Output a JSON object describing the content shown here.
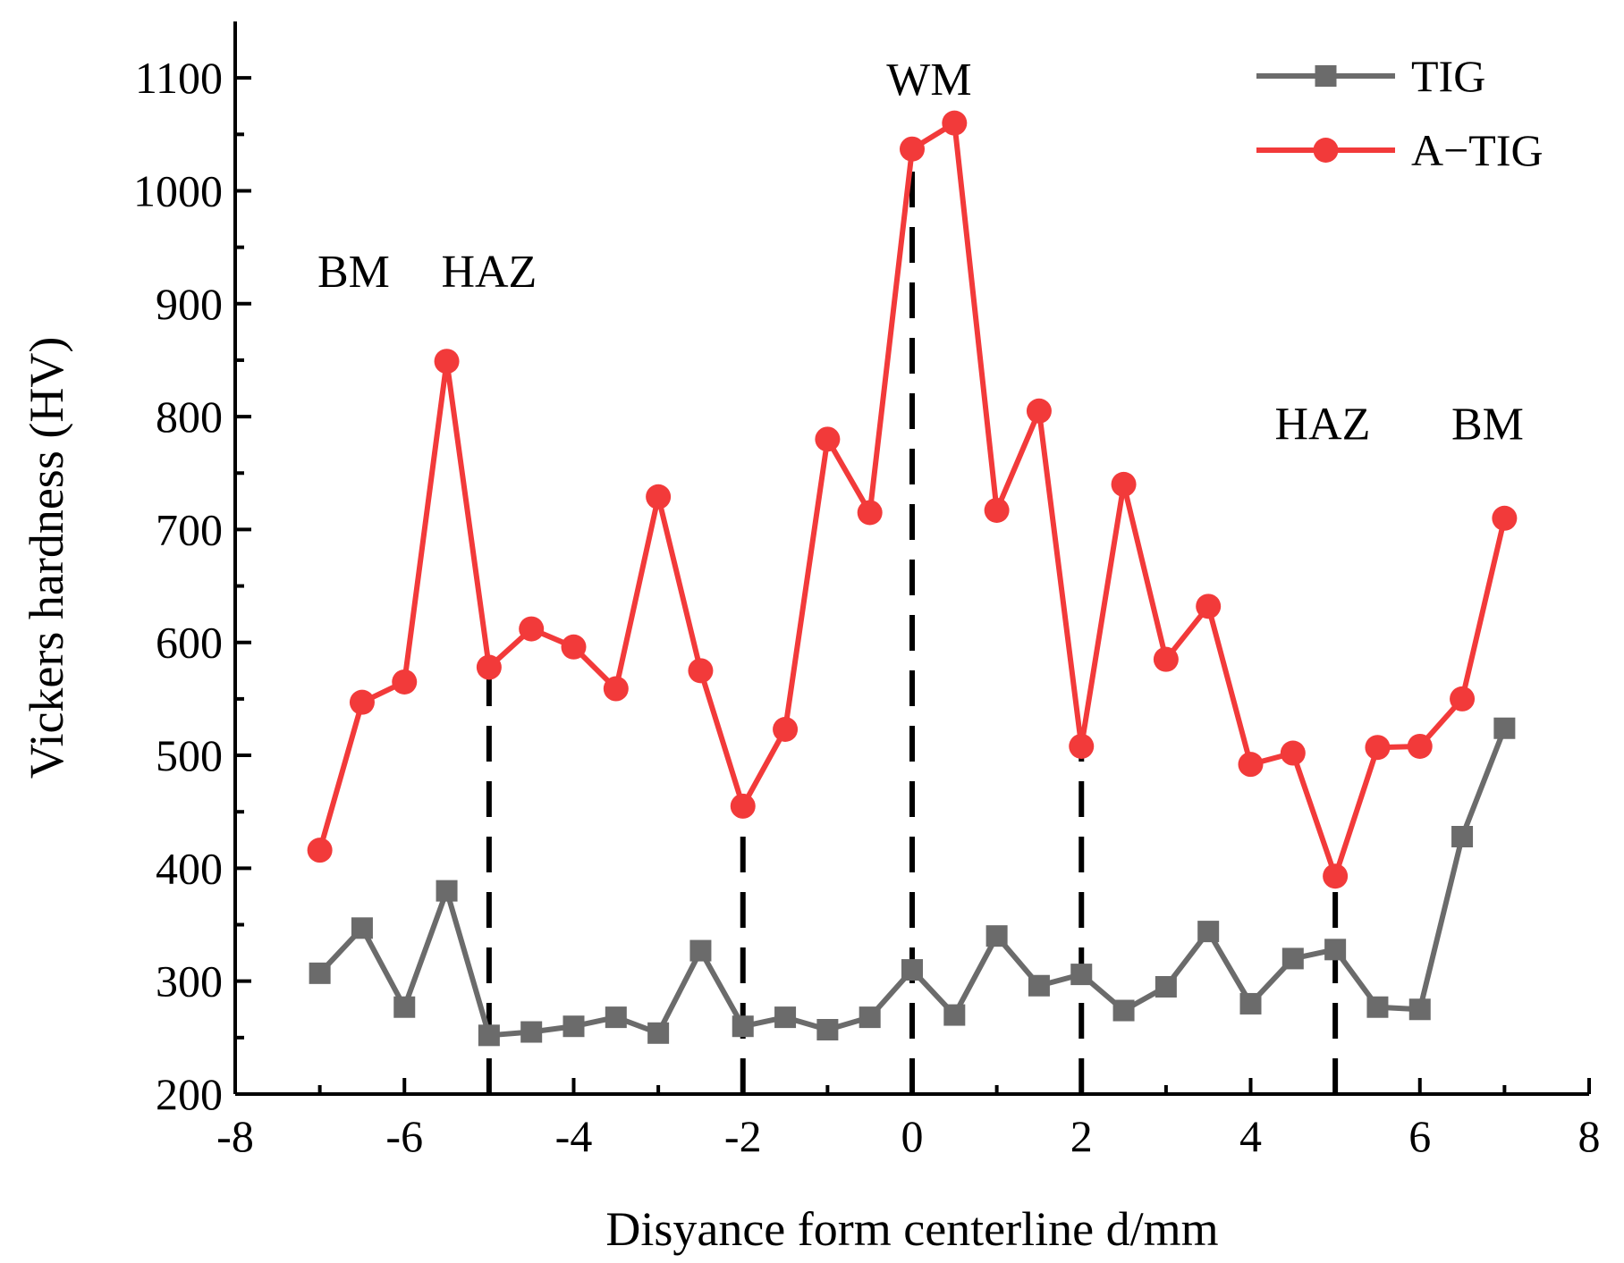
{
  "chart_data": {
    "type": "line",
    "title": "",
    "xlabel": "Disyance form centerline d/mm",
    "ylabel": "Vickers hardness (HV)",
    "xlim": [
      -8,
      8
    ],
    "ylim": [
      200,
      1150
    ],
    "xticks": [
      -8,
      -6,
      -4,
      -2,
      0,
      2,
      4,
      6,
      8
    ],
    "yticks": [
      200,
      300,
      400,
      500,
      600,
      700,
      800,
      900,
      1000,
      1100
    ],
    "x": [
      -7,
      -6.5,
      -6,
      -5.5,
      -5,
      -4.5,
      -4,
      -3.5,
      -3,
      -2.5,
      -2,
      -1.5,
      -1,
      -0.5,
      0,
      0.5,
      1,
      1.5,
      2,
      2.5,
      3,
      3.5,
      4,
      4.5,
      5,
      5.5,
      6,
      6.5,
      7
    ],
    "series": [
      {
        "name": "TIG",
        "color": "#6b6b6b",
        "marker": "square",
        "values": [
          307,
          347,
          277,
          380,
          252,
          255,
          260,
          268,
          254,
          327,
          260,
          268,
          257,
          268,
          310,
          270,
          340,
          296,
          306,
          274,
          295,
          344,
          280,
          320,
          328,
          277,
          275,
          428,
          524
        ]
      },
      {
        "name": "A−TIG",
        "color": "#f23a3a",
        "marker": "circle",
        "values": [
          416,
          547,
          565,
          849,
          578,
          612,
          596,
          559,
          729,
          575,
          455,
          523,
          780,
          715,
          1037,
          1060,
          717,
          805,
          508,
          740,
          585,
          632,
          492,
          502,
          393,
          507,
          508,
          550,
          710
        ]
      }
    ],
    "vertical_dashed_lines": [
      {
        "x": -5,
        "y_top": 578
      },
      {
        "x": -2,
        "y_top": 455
      },
      {
        "x": 0,
        "y_top": 1037
      },
      {
        "x": 2,
        "y_top": 508
      },
      {
        "x": 5,
        "y_top": 393
      }
    ],
    "annotations": [
      {
        "text": "BM",
        "x": -6.6,
        "y": 915
      },
      {
        "text": "HAZ",
        "x": -5.0,
        "y": 915
      },
      {
        "text": "WM",
        "x": 0.2,
        "y": 1085
      },
      {
        "text": "HAZ",
        "x": 4.85,
        "y": 780
      },
      {
        "text": "BM",
        "x": 6.8,
        "y": 780
      }
    ],
    "legend_position": "top-right"
  }
}
